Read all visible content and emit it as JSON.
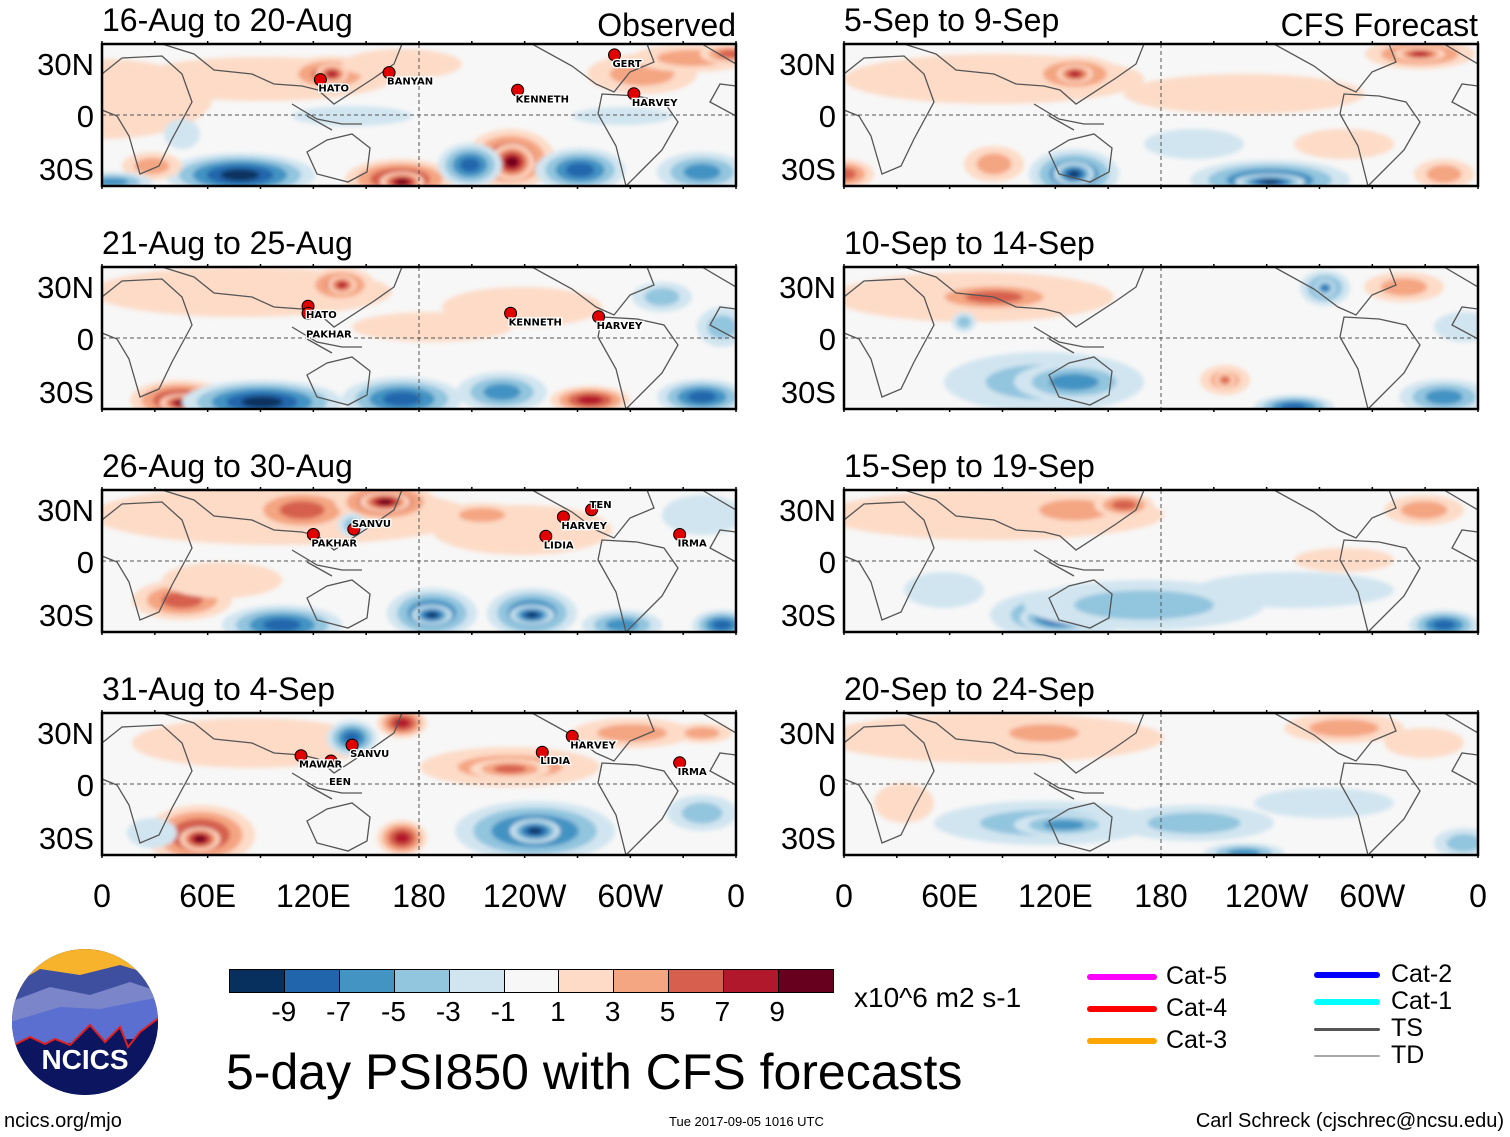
{
  "header": {
    "observed_label": "Observed",
    "forecast_label": "CFS Forecast"
  },
  "lat_labels": [
    "30N",
    "0",
    "30S"
  ],
  "lon_labels": [
    "0",
    "60E",
    "120E",
    "180",
    "120W",
    "60W",
    "0"
  ],
  "panels": [
    {
      "title": "16-Aug to 20-Aug",
      "group": "observed",
      "storms": [
        {
          "name": "HATO",
          "lon": 124,
          "lat": 20
        },
        {
          "name": "BANYAN",
          "lon": 163,
          "lat": 24
        },
        {
          "name": "KENNETH",
          "lon": 236,
          "lat": 14
        },
        {
          "name": "GERT",
          "lon": 291,
          "lat": 34
        },
        {
          "name": "HARVEY",
          "lon": 302,
          "lat": 12
        }
      ]
    },
    {
      "title": "21-Aug to 25-Aug",
      "group": "observed",
      "storms": [
        {
          "name": "HATO",
          "lon": 117,
          "lat": 18
        },
        {
          "name": "PAKHAR",
          "lon": 117,
          "lat": 14
        },
        {
          "name": "KENNETH",
          "lon": 232,
          "lat": 14
        },
        {
          "name": "HARVEY",
          "lon": 282,
          "lat": 12
        }
      ]
    },
    {
      "title": "26-Aug to 30-Aug",
      "group": "observed",
      "storms": [
        {
          "name": "PAKHAR",
          "lon": 120,
          "lat": 15
        },
        {
          "name": "SANVU",
          "lon": 143,
          "lat": 18
        },
        {
          "name": "LIDIA",
          "lon": 252,
          "lat": 14
        },
        {
          "name": "HARVEY",
          "lon": 262,
          "lat": 25
        },
        {
          "name": "TEN",
          "lon": 278,
          "lat": 29
        },
        {
          "name": "IRMA",
          "lon": 328,
          "lat": 15
        }
      ]
    },
    {
      "title": "31-Aug to 4-Sep",
      "group": "observed",
      "storms": [
        {
          "name": "SANVU",
          "lon": 142,
          "lat": 22
        },
        {
          "name": "MAWAR",
          "lon": 113,
          "lat": 16
        },
        {
          "name": "EEN",
          "lon": 130,
          "lat": 13
        },
        {
          "name": "HARVEY",
          "lon": 267,
          "lat": 27
        },
        {
          "name": "LIDIA",
          "lon": 250,
          "lat": 18
        },
        {
          "name": "IRMA",
          "lon": 328,
          "lat": 12
        }
      ]
    },
    {
      "title": "5-Sep to 9-Sep",
      "group": "forecast",
      "storms": []
    },
    {
      "title": "10-Sep to 14-Sep",
      "group": "forecast",
      "storms": []
    },
    {
      "title": "15-Sep to 19-Sep",
      "group": "forecast",
      "storms": []
    },
    {
      "title": "20-Sep to 24-Sep",
      "group": "forecast",
      "storms": []
    }
  ],
  "colorbar": {
    "colors": [
      "#08305e",
      "#2166ac",
      "#4393c3",
      "#92c5de",
      "#d1e5f0",
      "#f7f7f7",
      "#fddbc7",
      "#f4a582",
      "#d6604d",
      "#b2182b",
      "#67001f"
    ],
    "labels": [
      "-9",
      "-7",
      "-5",
      "-3",
      "-1",
      "1",
      "3",
      "5",
      "7",
      "9"
    ],
    "units": "x10^6 m2 s-1"
  },
  "legend": [
    {
      "label": "Cat-5",
      "color": "#ff00ff"
    },
    {
      "label": "Cat-4",
      "color": "#ff0000"
    },
    {
      "label": "Cat-3",
      "color": "#ffa500"
    },
    {
      "label": "Cat-2",
      "color": "#0000ff"
    },
    {
      "label": "Cat-1",
      "color": "#00ffff"
    },
    {
      "label": "TS",
      "color": "#555555"
    },
    {
      "label": "TD",
      "color": "#aaaaaa"
    }
  ],
  "chart_data": {
    "type": "heatmap",
    "title": "5-day PSI850 with CFS forecasts",
    "units": "x10^6 m2 s-1",
    "levels": [
      -9,
      -7,
      -5,
      -3,
      -1,
      1,
      3,
      5,
      7,
      9
    ],
    "xlabel": "",
    "ylabel": "",
    "x_ticks": [
      "0",
      "60E",
      "120E",
      "180",
      "120W",
      "60W",
      "0"
    ],
    "y_ticks": [
      "30N",
      "0",
      "30S"
    ],
    "periods_observed": [
      "16-Aug to 20-Aug",
      "21-Aug to 25-Aug",
      "26-Aug to 30-Aug",
      "31-Aug to 4-Sep"
    ],
    "periods_forecast": [
      "5-Sep to 9-Sep",
      "10-Sep to 14-Sep",
      "15-Sep to 19-Sep",
      "20-Sep to 24-Sep"
    ]
  },
  "footer": {
    "title": "5-day PSI850 with CFS forecasts",
    "logo_text": "NCICS",
    "url": "ncics.org/mjo",
    "timestamp": "Tue 2017-09-05 1016 UTC",
    "credit": "Carl Schreck (cjschrec@ncsu.edu)"
  }
}
